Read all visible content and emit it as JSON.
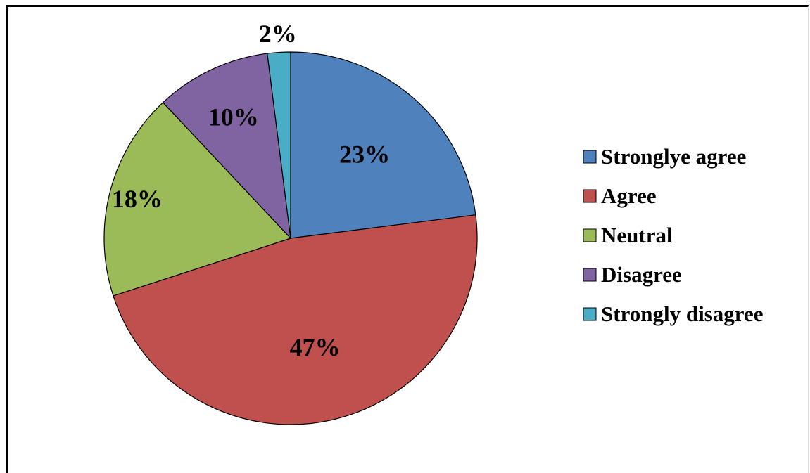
{
  "chart_data": {
    "type": "pie",
    "categories": [
      "Stronglye agree",
      "Agree",
      "Neutral",
      "Disagree",
      "Strongly disagree"
    ],
    "values": [
      23,
      47,
      18,
      10,
      2
    ],
    "labels": [
      "23%",
      "47%",
      "18%",
      "10%",
      "2%"
    ],
    "colors": [
      "#4F81BD",
      "#C0504D",
      "#9BBB59",
      "#8064A2",
      "#4BACC6"
    ],
    "legend_position": "right"
  }
}
